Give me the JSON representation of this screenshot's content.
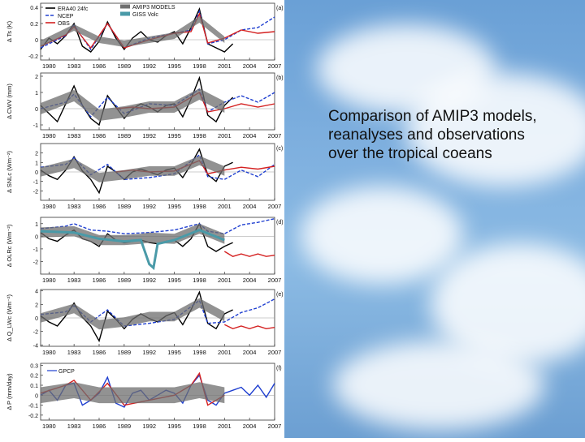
{
  "caption": "Comparison of AMIP3 models, reanalyses and observations over the tropical coeans",
  "colors": {
    "era40": "#000000",
    "ncep": "#1f3fd0",
    "obs": "#d42020",
    "amip3": "#6e6e6e",
    "giss": "#4a9aa8",
    "gpcp": "#1f3fd0"
  },
  "chart_data": [
    {
      "type": "line",
      "panel_label": "(a)",
      "ylabel": "Δ Ts (K)",
      "x_ticks": [
        "1980",
        "1983",
        "1986",
        "1989",
        "1992",
        "1995",
        "1998",
        "2001",
        "2004",
        "2007"
      ],
      "x_range": [
        1979,
        2007
      ],
      "ylim": [
        -0.25,
        0.45
      ],
      "y_ticks": [
        -0.2,
        0.0,
        0.2,
        0.4
      ],
      "legend": [
        "ERA40 24fc",
        "NCEP",
        "OBS",
        "AMIP3 MODELS",
        "GISS Volc"
      ],
      "series": [
        {
          "name": "ERA40 24fc",
          "color_key": "era40",
          "style": "solid",
          "x": [
            1979,
            1980,
            1981,
            1982,
            1983,
            1984,
            1985,
            1986,
            1987,
            1988,
            1989,
            1990,
            1991,
            1992,
            1993,
            1994,
            1995,
            1996,
            1997,
            1998,
            1999,
            2000,
            2001,
            2002
          ],
          "y": [
            -0.12,
            0.02,
            -0.05,
            0.05,
            0.2,
            -0.08,
            -0.15,
            -0.02,
            0.22,
            0.02,
            -0.12,
            0.02,
            0.1,
            0.0,
            -0.03,
            0.05,
            0.1,
            -0.05,
            0.15,
            0.38,
            -0.05,
            -0.1,
            -0.15,
            -0.05
          ]
        },
        {
          "name": "NCEP",
          "color_key": "ncep",
          "style": "dashed",
          "x": [
            1979,
            1982,
            1983,
            1985,
            1987,
            1989,
            1992,
            1995,
            1997,
            1998,
            1999,
            2001,
            2003,
            2005,
            2007
          ],
          "y": [
            -0.1,
            0.05,
            0.18,
            -0.12,
            0.2,
            -0.1,
            0.02,
            0.08,
            0.12,
            0.35,
            -0.05,
            0.0,
            0.12,
            0.15,
            0.28
          ]
        },
        {
          "name": "OBS",
          "color_key": "obs",
          "style": "solid",
          "x": [
            1979,
            1982,
            1983,
            1985,
            1987,
            1989,
            1992,
            1995,
            1997,
            1998,
            1999,
            2001,
            2003,
            2005,
            2007
          ],
          "y": [
            -0.08,
            0.06,
            0.16,
            -0.1,
            0.2,
            -0.1,
            0.0,
            0.08,
            0.1,
            0.32,
            -0.04,
            0.02,
            0.12,
            0.08,
            0.1
          ]
        },
        {
          "name": "AMIP3 MODELS",
          "color_key": "amip3",
          "style": "band",
          "x": [
            1979,
            1983,
            1986,
            1989,
            1992,
            1995,
            1998,
            2001
          ],
          "y": [
            -0.05,
            0.15,
            0.0,
            -0.05,
            0.0,
            0.05,
            0.25,
            0.0
          ],
          "spread": 0.04
        }
      ]
    },
    {
      "type": "line",
      "panel_label": "(b)",
      "ylabel": "Δ CWV (mm)",
      "x_ticks": [
        "1980",
        "1983",
        "1986",
        "1989",
        "1992",
        "1995",
        "1998",
        "2001",
        "2004",
        "2007"
      ],
      "x_range": [
        1979,
        2007
      ],
      "ylim": [
        -1.3,
        2.2
      ],
      "y_ticks": [
        -1,
        0,
        1,
        2
      ],
      "series": [
        {
          "name": "ERA40 24fc",
          "color_key": "era40",
          "style": "solid",
          "x": [
            1979,
            1980,
            1981,
            1982,
            1983,
            1984,
            1985,
            1986,
            1987,
            1988,
            1989,
            1990,
            1991,
            1992,
            1993,
            1994,
            1995,
            1996,
            1997,
            1998,
            1999,
            2000,
            2001,
            2002
          ],
          "y": [
            0.2,
            -0.3,
            -0.8,
            0.3,
            1.4,
            0.2,
            -0.6,
            -1.0,
            0.8,
            0.1,
            -0.6,
            0.0,
            0.3,
            0.1,
            -0.2,
            0.2,
            0.3,
            -0.5,
            0.6,
            1.9,
            -0.4,
            -0.8,
            0.2,
            0.7
          ]
        },
        {
          "name": "NCEP",
          "color_key": "ncep",
          "style": "dashed",
          "x": [
            1979,
            1982,
            1983,
            1985,
            1987,
            1989,
            1992,
            1995,
            1998,
            1999,
            2001,
            2003,
            2005,
            2007
          ],
          "y": [
            0.0,
            0.4,
            0.9,
            -0.5,
            0.7,
            -0.3,
            0.3,
            0.2,
            1.2,
            -0.2,
            0.4,
            0.8,
            0.4,
            1.0
          ]
        },
        {
          "name": "OBS",
          "color_key": "obs",
          "style": "solid",
          "x": [
            1988,
            1990,
            1992,
            1995,
            1998,
            1999,
            2001,
            2003,
            2005,
            2007
          ],
          "y": [
            0.0,
            0.1,
            0.0,
            0.1,
            1.0,
            -0.2,
            0.0,
            0.3,
            0.1,
            0.3
          ]
        },
        {
          "name": "AMIP3 MODELS",
          "color_key": "amip3",
          "style": "band",
          "x": [
            1979,
            1983,
            1986,
            1989,
            1992,
            1995,
            1998,
            2001
          ],
          "y": [
            0.0,
            0.8,
            -0.4,
            -0.2,
            0.1,
            0.1,
            0.9,
            0.1
          ],
          "spread": 0.35
        }
      ]
    },
    {
      "type": "line",
      "panel_label": "(c)",
      "ylabel": "Δ SNLc (Wm⁻²)",
      "x_ticks": [
        "1980",
        "1983",
        "1986",
        "1989",
        "1992",
        "1995",
        "1998",
        "2001",
        "2004",
        "2007"
      ],
      "x_range": [
        1979,
        2007
      ],
      "ylim": [
        -3,
        3
      ],
      "y_ticks": [
        -2,
        -1,
        0,
        1,
        2
      ],
      "series": [
        {
          "name": "ERA40 24fc",
          "color_key": "era40",
          "style": "solid",
          "x": [
            1979,
            1980,
            1981,
            1982,
            1983,
            1984,
            1985,
            1986,
            1987,
            1988,
            1989,
            1990,
            1991,
            1992,
            1993,
            1994,
            1995,
            1996,
            1997,
            1998,
            1999,
            2000,
            2001,
            2002
          ],
          "y": [
            0.2,
            -0.4,
            -0.8,
            0.2,
            1.6,
            0.1,
            -0.8,
            -2.2,
            0.6,
            0.0,
            -0.8,
            0.0,
            0.3,
            0.0,
            -0.3,
            0.2,
            0.4,
            -0.6,
            0.8,
            2.4,
            -0.3,
            -1.0,
            0.6,
            1.0
          ]
        },
        {
          "name": "NCEP",
          "color_key": "ncep",
          "style": "dashed",
          "x": [
            1979,
            1982,
            1983,
            1985,
            1987,
            1989,
            1992,
            1995,
            1998,
            1999,
            2001,
            2003,
            2005,
            2007
          ],
          "y": [
            0.5,
            0.8,
            1.5,
            -0.3,
            0.8,
            -0.8,
            -0.6,
            -0.2,
            1.8,
            -0.5,
            -0.8,
            0.2,
            -0.5,
            0.8
          ]
        },
        {
          "name": "OBS",
          "color_key": "obs",
          "style": "solid",
          "x": [
            1988,
            1990,
            1992,
            1995,
            1998,
            1999,
            2001,
            2003,
            2005,
            2007
          ],
          "y": [
            0.0,
            0.2,
            0.0,
            0.1,
            1.2,
            -0.2,
            0.2,
            0.5,
            0.3,
            0.6
          ]
        },
        {
          "name": "AMIP3 MODELS",
          "color_key": "amip3",
          "style": "band",
          "x": [
            1979,
            1983,
            1986,
            1989,
            1992,
            1995,
            1998,
            2001
          ],
          "y": [
            0.0,
            0.9,
            -0.6,
            -0.3,
            0.1,
            0.1,
            1.2,
            0.1
          ],
          "spread": 0.5
        }
      ]
    },
    {
      "type": "line",
      "panel_label": "(d)",
      "ylabel": "Δ OLRc (Wm⁻²)",
      "x_ticks": [
        "1980",
        "1983",
        "1986",
        "1989",
        "1992",
        "1995",
        "1998",
        "2001",
        "2004",
        "2007"
      ],
      "x_range": [
        1979,
        2007
      ],
      "ylim": [
        -3,
        1.5
      ],
      "y_ticks": [
        -2,
        -1,
        0,
        1
      ],
      "series": [
        {
          "name": "ERA40 24fc",
          "color_key": "era40",
          "style": "solid",
          "x": [
            1979,
            1980,
            1981,
            1982,
            1983,
            1984,
            1985,
            1986,
            1987,
            1988,
            1989,
            1990,
            1991,
            1992,
            1993,
            1994,
            1995,
            1996,
            1997,
            1998,
            1999,
            2000,
            2001,
            2002
          ],
          "y": [
            0.3,
            -0.2,
            -0.4,
            0.1,
            0.5,
            -0.2,
            -0.4,
            -0.8,
            0.2,
            -0.3,
            -0.5,
            -0.4,
            -0.3,
            -0.5,
            -0.6,
            -0.4,
            -0.3,
            -0.8,
            -0.2,
            1.0,
            -0.8,
            -1.2,
            -0.8,
            -0.5
          ]
        },
        {
          "name": "NCEP",
          "color_key": "ncep",
          "style": "dashed",
          "x": [
            1979,
            1982,
            1983,
            1985,
            1987,
            1989,
            1992,
            1995,
            1998,
            1999,
            2001,
            2003,
            2005,
            2007
          ],
          "y": [
            0.6,
            0.8,
            1.0,
            0.5,
            0.4,
            0.2,
            0.3,
            0.5,
            1.0,
            0.4,
            0.2,
            0.9,
            1.1,
            1.4
          ]
        },
        {
          "name": "OBS",
          "color_key": "obs",
          "style": "solid",
          "x": [
            2001,
            2002,
            2003,
            2004,
            2005,
            2006,
            2007
          ],
          "y": [
            -1.2,
            -1.6,
            -1.4,
            -1.6,
            -1.4,
            -1.6,
            -1.5
          ]
        },
        {
          "name": "AMIP3 MODELS",
          "color_key": "amip3",
          "style": "band",
          "x": [
            1979,
            1983,
            1986,
            1989,
            1991,
            1992,
            1995,
            1998,
            2001
          ],
          "y": [
            0.3,
            0.4,
            -0.3,
            -0.3,
            -0.2,
            -0.1,
            -0.2,
            0.6,
            -0.2
          ],
          "spread": 0.4
        },
        {
          "name": "GISS Volc",
          "color_key": "giss",
          "style": "solid",
          "x": [
            1979,
            1983,
            1986,
            1989,
            1991,
            1992,
            1992.5,
            1993,
            1995,
            1998,
            2001
          ],
          "y": [
            0.4,
            0.3,
            -0.2,
            -0.4,
            -0.3,
            -2.2,
            -2.5,
            -0.6,
            -0.3,
            0.5,
            -0.3
          ]
        }
      ]
    },
    {
      "type": "line",
      "panel_label": "(e)",
      "ylabel": "Δ Q_LWc (Wm⁻²)",
      "x_ticks": [
        "1980",
        "1983",
        "1986",
        "1989",
        "1992",
        "1995",
        "1998",
        "2001",
        "2004",
        "2007"
      ],
      "x_range": [
        1979,
        2007
      ],
      "ylim": [
        -4.2,
        4.2
      ],
      "y_ticks": [
        -4,
        -2,
        0,
        2,
        4
      ],
      "series": [
        {
          "name": "ERA40 24fc",
          "color_key": "era40",
          "style": "solid",
          "x": [
            1979,
            1980,
            1981,
            1982,
            1983,
            1984,
            1985,
            1986,
            1987,
            1988,
            1989,
            1990,
            1991,
            1992,
            1993,
            1994,
            1995,
            1996,
            1997,
            1998,
            1999,
            2000,
            2001,
            2002
          ],
          "y": [
            0.3,
            -0.6,
            -1.2,
            0.3,
            2.2,
            0.1,
            -1.2,
            -3.4,
            1.0,
            -0.2,
            -1.6,
            -0.2,
            0.6,
            -0.1,
            -0.6,
            0.3,
            0.8,
            -1.0,
            1.2,
            3.8,
            -0.8,
            -1.6,
            0.6,
            1.2
          ]
        },
        {
          "name": "NCEP",
          "color_key": "ncep",
          "style": "dashed",
          "x": [
            1979,
            1982,
            1983,
            1985,
            1987,
            1989,
            1992,
            1995,
            1998,
            1999,
            2001,
            2003,
            2005,
            2007
          ],
          "y": [
            0.5,
            0.9,
            1.8,
            -0.6,
            1.2,
            -1.2,
            -0.8,
            -0.2,
            2.6,
            -0.8,
            -0.6,
            0.8,
            1.5,
            2.8
          ]
        },
        {
          "name": "OBS",
          "color_key": "obs",
          "style": "solid",
          "x": [
            2001,
            2002,
            2003,
            2004,
            2005,
            2006,
            2007
          ],
          "y": [
            -1.0,
            -1.6,
            -1.2,
            -1.6,
            -1.2,
            -1.6,
            -1.4
          ]
        },
        {
          "name": "AMIP3 MODELS",
          "color_key": "amip3",
          "style": "band",
          "x": [
            1979,
            1983,
            1986,
            1989,
            1992,
            1995,
            1998,
            2001
          ],
          "y": [
            0.0,
            1.4,
            -1.0,
            -0.6,
            0.2,
            0.2,
            2.2,
            0.2
          ],
          "spread": 0.7
        }
      ]
    },
    {
      "type": "line",
      "panel_label": "(f)",
      "ylabel": "Δ P (mm/day)",
      "x_ticks": [
        "1980",
        "1983",
        "1986",
        "1989",
        "1992",
        "1995",
        "1998",
        "2001",
        "2004",
        "2007"
      ],
      "x_range": [
        1979,
        2007
      ],
      "ylim": [
        -0.25,
        0.32
      ],
      "y_ticks": [
        -0.2,
        -0.1,
        0.0,
        0.1,
        0.2,
        0.3
      ],
      "legend": [
        "GPCP"
      ],
      "series": [
        {
          "name": "GPCP",
          "color_key": "gpcp",
          "style": "solid",
          "x": [
            1979,
            1980,
            1981,
            1982,
            1983,
            1984,
            1985,
            1986,
            1987,
            1988,
            1989,
            1990,
            1991,
            1992,
            1993,
            1994,
            1995,
            1996,
            1997,
            1998,
            1999,
            2000,
            2001,
            2002,
            2003,
            2004,
            2005,
            2006,
            2007
          ],
          "y": [
            0.0,
            0.05,
            -0.05,
            0.1,
            0.12,
            -0.1,
            -0.05,
            0.02,
            0.18,
            -0.08,
            -0.12,
            0.02,
            0.05,
            -0.05,
            0.0,
            0.05,
            0.02,
            -0.08,
            0.1,
            0.2,
            -0.05,
            -0.1,
            0.02,
            0.05,
            0.08,
            0.0,
            0.1,
            -0.02,
            0.12
          ]
        },
        {
          "name": "OBS",
          "color_key": "obs",
          "style": "solid",
          "x": [
            1979,
            1982,
            1983,
            1985,
            1987,
            1989,
            1992,
            1995,
            1997,
            1998,
            1999,
            2001
          ],
          "y": [
            0.02,
            0.1,
            0.15,
            -0.05,
            0.12,
            -0.1,
            -0.05,
            0.0,
            0.1,
            0.22,
            -0.1,
            0.0
          ]
        },
        {
          "name": "AMIP3 MODELS",
          "color_key": "amip3",
          "style": "band",
          "x": [
            1979,
            1983,
            1986,
            1989,
            1992,
            1995,
            1998,
            2001
          ],
          "y": [
            0.0,
            0.05,
            0.0,
            0.0,
            0.0,
            0.0,
            0.05,
            0.0
          ],
          "spread": 0.08
        }
      ]
    }
  ]
}
